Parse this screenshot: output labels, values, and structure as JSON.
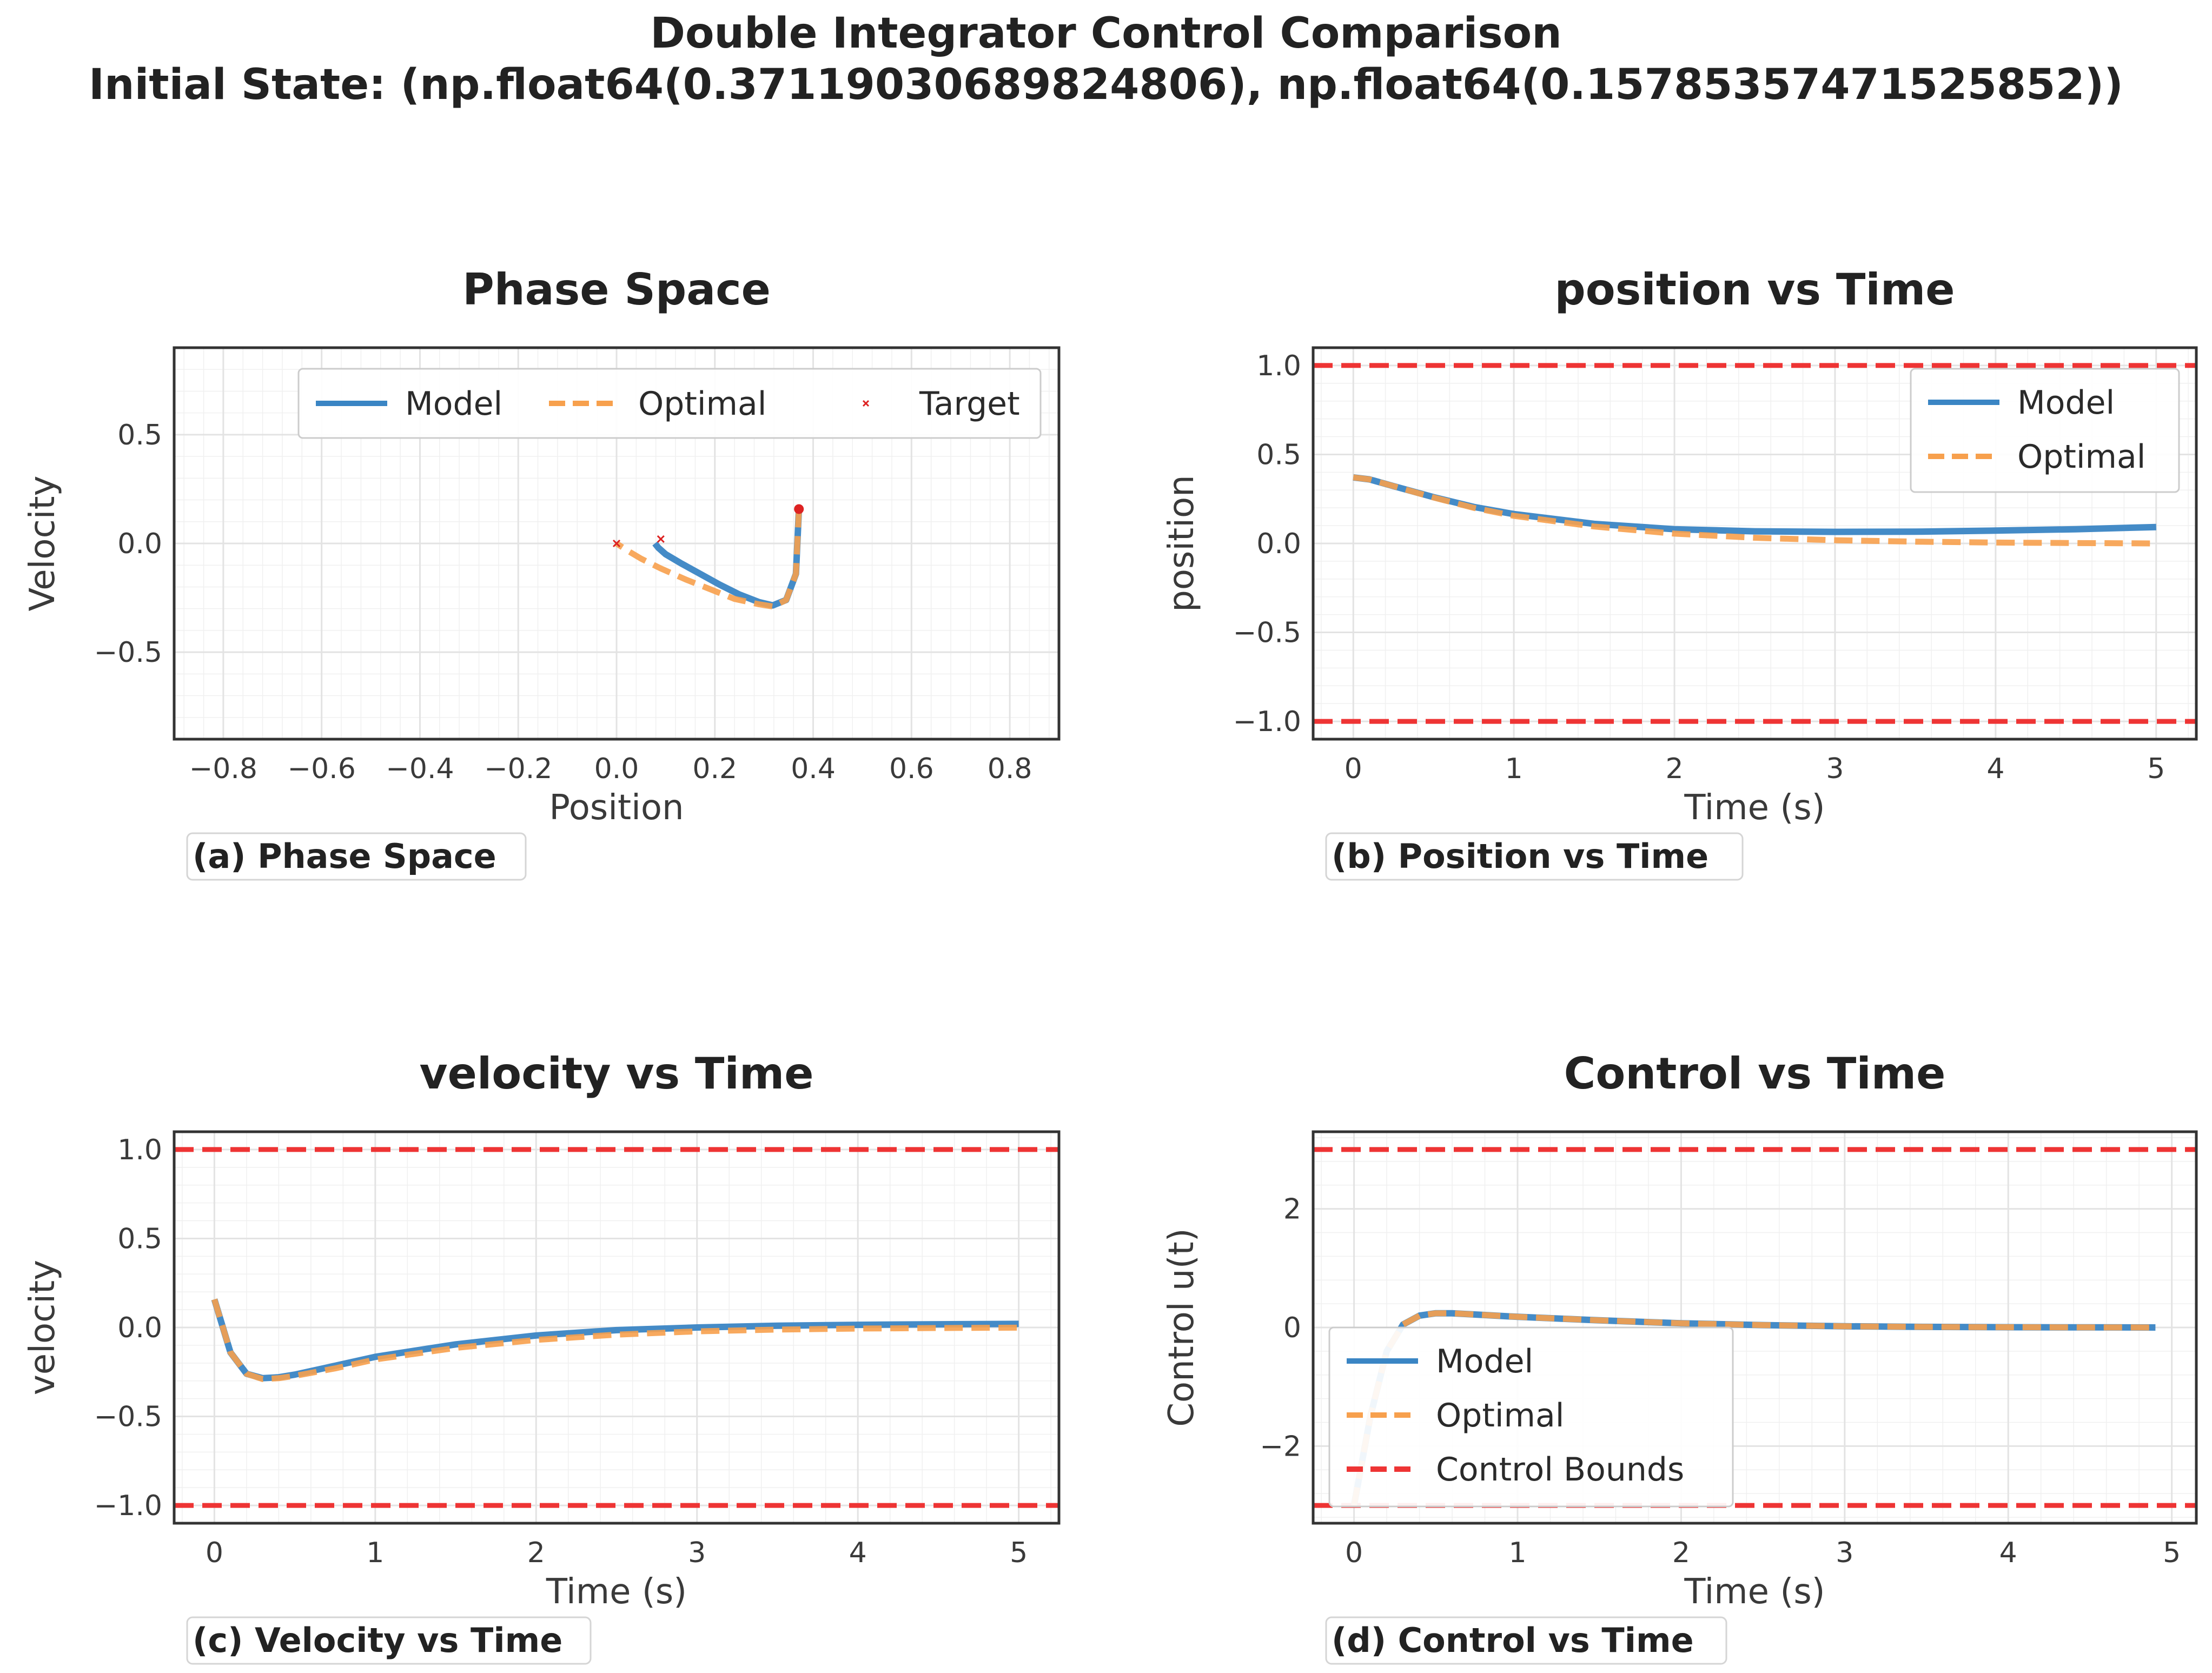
{
  "figure": {
    "title_line1": "Double Integrator Control Comparison",
    "title_line2": "Initial State: (np.float64(0.37119030689824806), np.float64(0.15785357471525852))"
  },
  "colors": {
    "model": "#3a85c4",
    "optimal": "#f7a04d",
    "bounds": "#ee3434",
    "target": "#dd2222"
  },
  "chart_data": [
    {
      "type": "line",
      "title": "Phase Space",
      "caption": "(a) Phase Space",
      "xlabel": "Position",
      "ylabel": "Velocity",
      "xlim": [
        -0.9,
        0.9
      ],
      "ylim": [
        -0.9,
        0.9
      ],
      "xticks": [
        -0.8,
        -0.6,
        -0.4,
        -0.2,
        0.0,
        0.2,
        0.4,
        0.6,
        0.8
      ],
      "xtick_labels": [
        "−0.8",
        "−0.6",
        "−0.4",
        "−0.2",
        "0.0",
        "0.2",
        "0.4",
        "0.6",
        "0.8"
      ],
      "yticks": [
        -0.5,
        0.0,
        0.5
      ],
      "ytick_labels": [
        "−0.5",
        "0.0",
        "0.5"
      ],
      "grid": true,
      "legend": {
        "position": "top-right",
        "columns": 3,
        "entries": [
          "Model",
          "Optimal",
          "Target"
        ]
      },
      "series": [
        {
          "name": "Model",
          "style": "solid",
          "x": [
            0.371,
            0.365,
            0.345,
            0.318,
            0.29,
            0.25,
            0.21,
            0.17,
            0.13,
            0.1,
            0.085,
            0.078
          ],
          "y": [
            0.158,
            -0.14,
            -0.26,
            -0.285,
            -0.27,
            -0.235,
            -0.19,
            -0.14,
            -0.09,
            -0.05,
            -0.02,
            0.0
          ]
        },
        {
          "name": "Optimal",
          "style": "dashed",
          "x": [
            0.371,
            0.365,
            0.345,
            0.318,
            0.29,
            0.24,
            0.19,
            0.14,
            0.09,
            0.05,
            0.02,
            0.0
          ],
          "y": [
            0.158,
            -0.14,
            -0.26,
            -0.29,
            -0.28,
            -0.255,
            -0.21,
            -0.165,
            -0.115,
            -0.07,
            -0.03,
            0.0
          ]
        },
        {
          "name": "Target",
          "style": "marker-x",
          "x": [
            0.0,
            0.09
          ],
          "y": [
            0.0,
            0.02
          ]
        }
      ]
    },
    {
      "type": "line",
      "title": "position vs Time",
      "caption": "(b) Position vs Time",
      "xlabel": "Time (s)",
      "ylabel": "position",
      "xlim": [
        -0.25,
        5.25
      ],
      "ylim": [
        -1.1,
        1.1
      ],
      "xticks": [
        0,
        1,
        2,
        3,
        4,
        5
      ],
      "xtick_labels": [
        "0",
        "1",
        "2",
        "3",
        "4",
        "5"
      ],
      "yticks": [
        -1.0,
        -0.5,
        0.0,
        0.5,
        1.0
      ],
      "ytick_labels": [
        "−1.0",
        "−0.5",
        "0.0",
        "0.5",
        "1.0"
      ],
      "grid": true,
      "hlines": [
        1.0,
        -1.0
      ],
      "legend": {
        "position": "top-right",
        "columns": 1,
        "entries": [
          "Model",
          "Optimal"
        ]
      },
      "series": [
        {
          "name": "Model",
          "style": "solid",
          "x": [
            0,
            0.1,
            0.25,
            0.5,
            0.75,
            1,
            1.5,
            2,
            2.5,
            3,
            3.5,
            4,
            4.5,
            5
          ],
          "y": [
            0.371,
            0.36,
            0.322,
            0.26,
            0.205,
            0.165,
            0.11,
            0.08,
            0.068,
            0.065,
            0.066,
            0.072,
            0.08,
            0.092
          ]
        },
        {
          "name": "Optimal",
          "style": "dashed",
          "x": [
            0,
            0.1,
            0.25,
            0.5,
            0.75,
            1,
            1.5,
            2,
            2.5,
            3,
            3.5,
            4,
            4.5,
            5
          ],
          "y": [
            0.371,
            0.36,
            0.322,
            0.258,
            0.2,
            0.155,
            0.095,
            0.055,
            0.032,
            0.018,
            0.01,
            0.005,
            0.002,
            0.0
          ]
        }
      ]
    },
    {
      "type": "line",
      "title": "velocity vs Time",
      "caption": "(c) Velocity vs Time",
      "xlabel": "Time (s)",
      "ylabel": "velocity",
      "xlim": [
        -0.25,
        5.25
      ],
      "ylim": [
        -1.1,
        1.1
      ],
      "xticks": [
        0,
        1,
        2,
        3,
        4,
        5
      ],
      "xtick_labels": [
        "0",
        "1",
        "2",
        "3",
        "4",
        "5"
      ],
      "yticks": [
        -1.0,
        -0.5,
        0.0,
        0.5,
        1.0
      ],
      "ytick_labels": [
        "−1.0",
        "−0.5",
        "0.0",
        "0.5",
        "1.0"
      ],
      "grid": true,
      "hlines": [
        1.0,
        -1.0
      ],
      "series": [
        {
          "name": "Model",
          "style": "solid",
          "x": [
            0,
            0.1,
            0.2,
            0.3,
            0.4,
            0.5,
            0.75,
            1,
            1.5,
            2,
            2.5,
            3,
            3.5,
            4,
            4.5,
            5
          ],
          "y": [
            0.158,
            -0.14,
            -0.26,
            -0.285,
            -0.28,
            -0.265,
            -0.215,
            -0.165,
            -0.095,
            -0.045,
            -0.015,
            0.0,
            0.01,
            0.015,
            0.018,
            0.02
          ]
        },
        {
          "name": "Optimal",
          "style": "dashed",
          "x": [
            0,
            0.1,
            0.2,
            0.3,
            0.4,
            0.5,
            0.75,
            1,
            1.5,
            2,
            2.5,
            3,
            3.5,
            4,
            4.5,
            5
          ],
          "y": [
            0.158,
            -0.14,
            -0.26,
            -0.29,
            -0.285,
            -0.272,
            -0.23,
            -0.18,
            -0.115,
            -0.07,
            -0.04,
            -0.022,
            -0.012,
            -0.006,
            -0.003,
            -0.001
          ]
        }
      ]
    },
    {
      "type": "line",
      "title": "Control vs Time",
      "caption": "(d) Control vs Time",
      "xlabel": "Time (s)",
      "ylabel": "Control u(t)",
      "xlim": [
        -0.25,
        5.15
      ],
      "ylim": [
        -3.3,
        3.3
      ],
      "xticks": [
        0,
        1,
        2,
        3,
        4,
        5
      ],
      "xtick_labels": [
        "0",
        "1",
        "2",
        "3",
        "4",
        "5"
      ],
      "yticks": [
        -2,
        0,
        2
      ],
      "ytick_labels": [
        "−2",
        "0",
        "2"
      ],
      "grid": true,
      "hlines": [
        3.0,
        -3.0
      ],
      "legend": {
        "position": "lower-left",
        "columns": 1,
        "entries": [
          "Model",
          "Optimal",
          "Control Bounds"
        ]
      },
      "series": [
        {
          "name": "Model",
          "style": "solid",
          "x": [
            0,
            0.1,
            0.2,
            0.3,
            0.4,
            0.5,
            0.6,
            0.8,
            1,
            1.5,
            2,
            2.5,
            3,
            3.5,
            4,
            4.5,
            4.9
          ],
          "y": [
            -3.0,
            -1.5,
            -0.4,
            0.05,
            0.2,
            0.24,
            0.24,
            0.21,
            0.18,
            0.12,
            0.07,
            0.04,
            0.02,
            0.01,
            0.005,
            0.002,
            0.0
          ]
        },
        {
          "name": "Optimal",
          "style": "dashed",
          "x": [
            0,
            0.1,
            0.2,
            0.3,
            0.4,
            0.5,
            0.6,
            0.8,
            1,
            1.5,
            2,
            2.5,
            3,
            3.5,
            4,
            4.5,
            4.9
          ],
          "y": [
            -3.0,
            -1.5,
            -0.4,
            0.05,
            0.2,
            0.24,
            0.24,
            0.21,
            0.18,
            0.12,
            0.07,
            0.04,
            0.02,
            0.01,
            0.005,
            0.002,
            0.0
          ]
        }
      ]
    }
  ]
}
